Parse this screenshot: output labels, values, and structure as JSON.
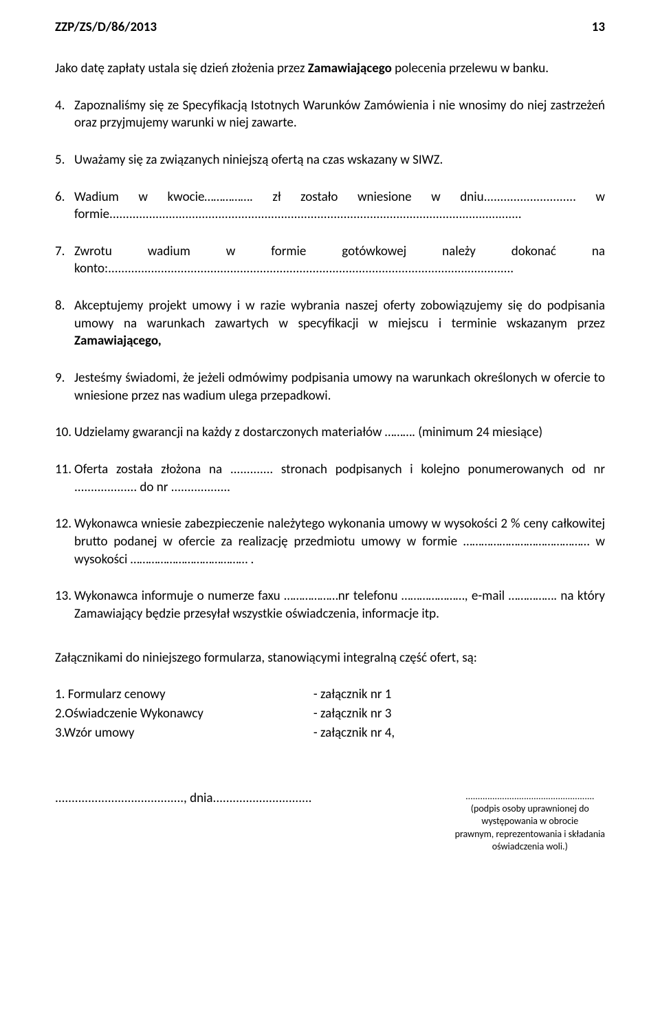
{
  "header": {
    "doc_ref": "ZZP/ZS/D/86/2013",
    "page_num": "13"
  },
  "intro": {
    "prefix": "Jako datę zapłaty ustala się dzień złożenia przez ",
    "bold": "Zamawiającego",
    "suffix": " polecenia przelewu w banku."
  },
  "items": {
    "i4": "Zapoznaliśmy się ze Specyfikacją Istotnych Warunków Zamówienia i nie wnosimy do niej zastrzeżeń oraz przyjmujemy warunki w niej zawarte.",
    "i5": "Uważamy się za związanych niniejszą ofertą na czas wskazany w SIWZ.",
    "i6": "Wadium w kwocie……………. zł zostało wniesione w dniu............................ w formie.............................................................................................................................",
    "i7": "Zwrotu wadium w formie gotówkowej należy dokonać na konto:...........................................................................................................................",
    "i8_prefix": "Akceptujemy projekt umowy i w razie wybrania naszej oferty zobowiązujemy się do podpisania umowy na warunkach zawartych w specyfikacji w miejscu i terminie wskazanym przez ",
    "i8_bold": "Zamawiającego,",
    "i9": "Jesteśmy świadomi, że jeżeli odmówimy podpisania umowy na warunkach określonych w ofercie to wniesione przez nas wadium ulega przepadkowi.",
    "i10": "Udzielamy gwarancji na każdy z dostarczonych materiałów ………. (minimum 24 miesiące)",
    "i11": "Oferta została złożona na ............. stronach  podpisanych i kolejno ponumerowanych od nr ................... do nr ..................",
    "i12": "Wykonawca wniesie zabezpieczenie należytego wykonania umowy w wysokości 2 % ceny całkowitej brutto podanej w ofercie za realizację przedmiotu umowy w formie …………………………………… w wysokości ………………………………… .",
    "i13": "Wykonawca informuje o numerze  faxu ………………nr telefonu …………………, e-mail ……………. na który Zamawiający będzie przesyłał wszystkie oświadczenia, informacje itp."
  },
  "attachments": {
    "intro": "Załącznikami do niniejszego formularza, stanowiącymi integralną część ofert, są:",
    "rows": [
      {
        "left": "1. Formularz cenowy",
        "right": "- załącznik nr 1"
      },
      {
        "left": "2.Oświadczenie Wykonawcy",
        "right": "- załącznik nr 3"
      },
      {
        "left": "3.Wzór umowy",
        "right": "- załącznik nr 4,"
      }
    ]
  },
  "footer": {
    "date_line": "......................................., dnia..............................",
    "sig_dots": ".....................................................",
    "sig_l1": "(podpis osoby uprawnionej do",
    "sig_l2": "występowania  w obrocie",
    "sig_l3": "prawnym, reprezentowania i składania",
    "sig_l4": "oświadczenia woli.)"
  }
}
